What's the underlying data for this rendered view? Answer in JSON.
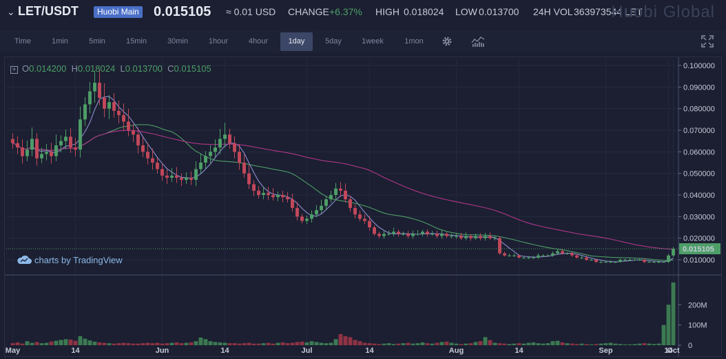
{
  "header": {
    "pair": "LET/USDT",
    "badge": "Huobi Main",
    "price": "0.015105",
    "usd_value": "≈ 0.01 USD",
    "change_label": "CHANGE",
    "change_value": "+6.37%",
    "high_label": "HIGH",
    "high_value": "0.018024",
    "low_label": "LOW",
    "low_value": "0.013700",
    "vol_label": "24H VOL",
    "vol_value": "363973544 LET",
    "logo_text": "Huobi Global"
  },
  "toolbar": {
    "intervals": [
      "Time",
      "1min",
      "5min",
      "15min",
      "30min",
      "1hour",
      "4hour",
      "1day",
      "5day",
      "1week",
      "1mon"
    ],
    "active_interval": "1day",
    "icons": [
      "gear-icon",
      "indicators-icon",
      "fullscreen-icon"
    ]
  },
  "legend": {
    "o_label": "O",
    "o_value": "0.014200",
    "h_label": "H",
    "h_value": "0.018024",
    "l_label": "L",
    "l_value": "0.013700",
    "c_label": "C",
    "c_value": "0.015105"
  },
  "watermark": {
    "prefix": "charts by",
    "brand": "TradingView"
  },
  "colors": {
    "up": "#4e9e68",
    "down": "#c2485a",
    "ma_fast": "#8f8fd0",
    "ma_mid": "#4e9e68",
    "ma_slow": "#b0368a",
    "last_price_bg": "#4e9e68"
  },
  "chart_data": {
    "type": "candlestick",
    "price_axis_ticks": [
      "0.100000",
      "0.090000",
      "0.080000",
      "0.070000",
      "0.060000",
      "0.050000",
      "0.040000",
      "0.030000",
      "0.020000",
      "0.010000"
    ],
    "last_price_label": "0.015105",
    "volume_axis_ticks": [
      "200M",
      "100M",
      "0"
    ],
    "x_tick_labels": [
      "May",
      "14",
      "Jun",
      "14",
      "Jul",
      "14",
      "Aug",
      "14",
      "Sep",
      "14",
      "Oct"
    ],
    "ylim": [
      0.0,
      0.1
    ],
    "approx_close_series": [
      0.064,
      0.062,
      0.058,
      0.061,
      0.066,
      0.057,
      0.059,
      0.06,
      0.058,
      0.063,
      0.065,
      0.067,
      0.062,
      0.061,
      0.075,
      0.082,
      0.088,
      0.092,
      0.085,
      0.08,
      0.083,
      0.079,
      0.077,
      0.074,
      0.07,
      0.068,
      0.063,
      0.06,
      0.057,
      0.055,
      0.052,
      0.049,
      0.048,
      0.049,
      0.048,
      0.047,
      0.048,
      0.047,
      0.052,
      0.055,
      0.058,
      0.06,
      0.062,
      0.066,
      0.068,
      0.064,
      0.06,
      0.055,
      0.05,
      0.045,
      0.042,
      0.04,
      0.041,
      0.04,
      0.039,
      0.04,
      0.039,
      0.038,
      0.034,
      0.03,
      0.028,
      0.029,
      0.031,
      0.033,
      0.035,
      0.038,
      0.04,
      0.043,
      0.042,
      0.038,
      0.034,
      0.031,
      0.029,
      0.028,
      0.025,
      0.022,
      0.021,
      0.022,
      0.022,
      0.023,
      0.022,
      0.022,
      0.021,
      0.022,
      0.022,
      0.023,
      0.022,
      0.022,
      0.021,
      0.022,
      0.021,
      0.021,
      0.021,
      0.02,
      0.021,
      0.02,
      0.021,
      0.02,
      0.021,
      0.02,
      0.02,
      0.013,
      0.012,
      0.012,
      0.012,
      0.011,
      0.011,
      0.011,
      0.011,
      0.012,
      0.012,
      0.012,
      0.013,
      0.014,
      0.013,
      0.013,
      0.012,
      0.011,
      0.011,
      0.01,
      0.01,
      0.009,
      0.009,
      0.009,
      0.009,
      0.009,
      0.01,
      0.01,
      0.01,
      0.01,
      0.01,
      0.009,
      0.009,
      0.009,
      0.009,
      0.009,
      0.012,
      0.015
    ],
    "approx_volume_series_M": [
      10,
      14,
      8,
      20,
      12,
      16,
      10,
      12,
      18,
      22,
      26,
      30,
      28,
      22,
      45,
      32,
      24,
      18,
      14,
      12,
      10,
      8,
      10,
      12,
      10,
      8,
      8,
      10,
      12,
      10,
      12,
      8,
      10,
      12,
      14,
      10,
      12,
      14,
      20,
      38,
      30,
      20,
      16,
      14,
      12,
      10,
      10,
      8,
      10,
      12,
      8,
      8,
      10,
      12,
      8,
      12,
      14,
      10,
      12,
      16,
      18,
      14,
      20,
      16,
      12,
      10,
      12,
      30,
      55,
      45,
      40,
      26,
      20,
      12,
      10,
      8,
      6,
      8,
      10,
      6,
      8,
      10,
      12,
      8,
      10,
      14,
      10,
      8,
      12,
      16,
      18,
      12,
      8,
      6,
      8,
      10,
      16,
      20,
      40,
      25,
      12,
      10,
      8,
      6,
      8,
      10,
      8,
      12,
      14,
      10,
      8,
      10,
      20,
      22,
      14,
      10,
      8,
      6,
      8,
      6,
      4,
      6,
      8,
      10,
      12,
      8,
      6,
      4,
      4,
      6,
      8,
      10,
      8,
      6,
      8,
      100,
      200,
      310
    ]
  }
}
